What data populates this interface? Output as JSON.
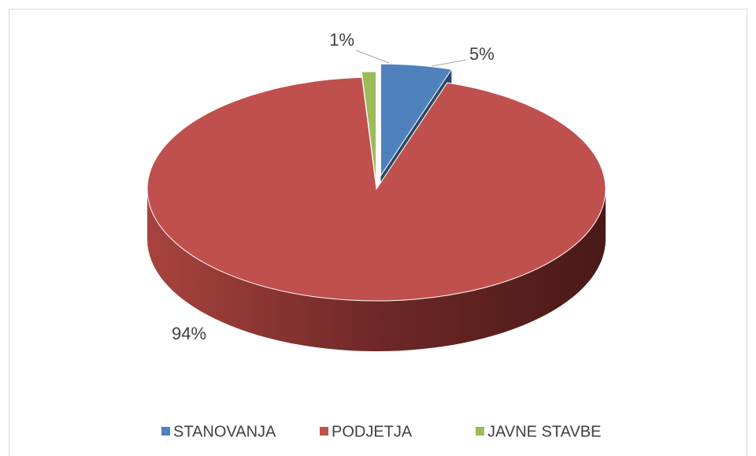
{
  "chart_data": {
    "type": "pie",
    "categories": [
      "STANOVANJA",
      "PODJETJA",
      "JAVNE STAVBE"
    ],
    "values": [
      5,
      94,
      1
    ],
    "value_labels": [
      "5%",
      "94%",
      "1%"
    ],
    "colors": [
      "#4f81bd",
      "#c0504d",
      "#9bbb59"
    ],
    "legend": "bottom"
  }
}
